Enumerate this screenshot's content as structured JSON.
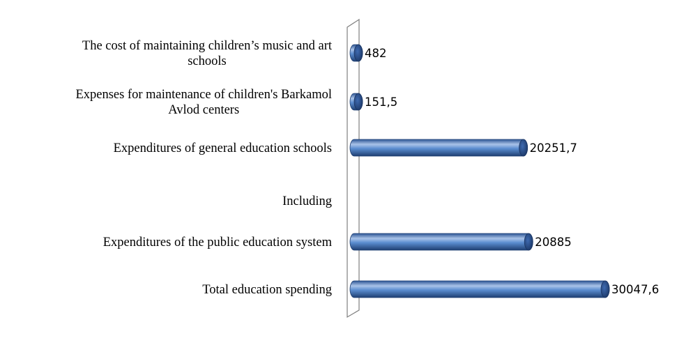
{
  "chart_data": {
    "type": "bar",
    "orientation": "horizontal",
    "categories": [
      "The cost of maintaining children’s music and art schools",
      "Expenses for maintenance of children's Barkamol Avlod centers",
      "Expenditures of general education schools",
      "Including",
      "Expenditures of the public education system",
      "Total education spending"
    ],
    "category_lines": [
      [
        "The cost of maintaining children’s music and art",
        "schools"
      ],
      [
        "Expenses for maintenance of children's Barkamol",
        "Avlod centers"
      ],
      [
        "Expenditures of general education schools"
      ],
      [
        "Including"
      ],
      [
        "Expenditures of the public education system"
      ],
      [
        "Total education spending"
      ]
    ],
    "values": [
      482,
      151.5,
      20251.7,
      null,
      20885,
      30047.6
    ],
    "value_labels": [
      "482",
      "151,5",
      "20251,7",
      "",
      "20885",
      "30047,6"
    ],
    "xlim": [
      0,
      30047.6
    ],
    "style": "3d-cylinder",
    "grid": false,
    "legend": "none",
    "colors": {
      "bar_main": "#4f81bd",
      "bar_dark": "#1f3f72",
      "bar_light": "#a9c3e8",
      "wall": "#7f7f7f"
    }
  }
}
